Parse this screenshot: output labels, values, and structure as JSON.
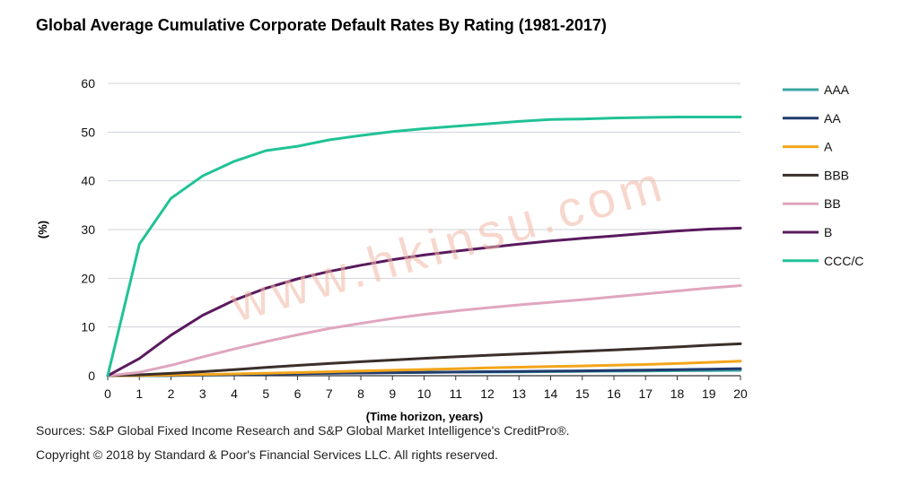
{
  "chart_data": {
    "type": "line",
    "title": "Global Average Cumulative Corporate Default Rates By Rating (1981-2017)",
    "xlabel": "(Time horizon, years)",
    "ylabel": "(%)",
    "xlim": [
      0,
      20
    ],
    "ylim": [
      0,
      60
    ],
    "x": [
      0,
      1,
      2,
      3,
      4,
      5,
      6,
      7,
      8,
      9,
      10,
      11,
      12,
      13,
      14,
      15,
      16,
      17,
      18,
      19,
      20
    ],
    "yticks": [
      0,
      10,
      20,
      30,
      40,
      50,
      60
    ],
    "grid": "horizontal",
    "legend_position": "right",
    "series": [
      {
        "name": "AAA",
        "color": "#3aa6a0",
        "values": [
          0,
          0,
          0.03,
          0.13,
          0.24,
          0.35,
          0.45,
          0.51,
          0.59,
          0.65,
          0.7,
          0.73,
          0.76,
          0.79,
          0.85,
          0.9,
          0.94,
          0.97,
          1.03,
          1.07,
          1.1
        ]
      },
      {
        "name": "AA",
        "color": "#1f3a6e",
        "values": [
          0,
          0.02,
          0.06,
          0.12,
          0.21,
          0.31,
          0.41,
          0.49,
          0.56,
          0.62,
          0.68,
          0.75,
          0.82,
          0.88,
          0.94,
          1.0,
          1.08,
          1.15,
          1.24,
          1.35,
          1.45
        ]
      },
      {
        "name": "A",
        "color": "#f3a51b",
        "values": [
          0,
          0.06,
          0.15,
          0.25,
          0.37,
          0.5,
          0.65,
          0.81,
          0.96,
          1.12,
          1.27,
          1.44,
          1.6,
          1.74,
          1.87,
          2.01,
          2.15,
          2.3,
          2.5,
          2.75,
          3.0
        ]
      },
      {
        "name": "BBB",
        "color": "#3b2f2a",
        "values": [
          0,
          0.18,
          0.48,
          0.82,
          1.25,
          1.69,
          2.12,
          2.5,
          2.88,
          3.23,
          3.57,
          3.89,
          4.18,
          4.48,
          4.74,
          5.0,
          5.3,
          5.6,
          5.9,
          6.25,
          6.55
        ]
      },
      {
        "name": "BB",
        "color": "#e0a6bf",
        "values": [
          0,
          0.7,
          2.13,
          3.84,
          5.48,
          7.0,
          8.4,
          9.68,
          10.75,
          11.74,
          12.59,
          13.31,
          13.95,
          14.54,
          15.08,
          15.6,
          16.2,
          16.8,
          17.4,
          18.0,
          18.5
        ]
      },
      {
        "name": "B",
        "color": "#5a1a5e",
        "values": [
          0,
          3.53,
          8.32,
          12.4,
          15.5,
          17.97,
          19.88,
          21.4,
          22.67,
          23.81,
          24.78,
          25.57,
          26.3,
          27.0,
          27.65,
          28.2,
          28.7,
          29.2,
          29.7,
          30.1,
          30.3
        ]
      },
      {
        "name": "CCC/C",
        "color": "#21c296",
        "values": [
          0,
          27.0,
          36.4,
          41.0,
          44.0,
          46.2,
          47.1,
          48.4,
          49.3,
          50.1,
          50.7,
          51.2,
          51.7,
          52.2,
          52.6,
          52.7,
          52.9,
          53.0,
          53.1,
          53.1,
          53.1
        ]
      }
    ]
  },
  "watermark": "www.hkinsu.com",
  "source_text": "Sources: S&P Global Fixed Income Research and S&P Global Market Intelligence's CreditPro®.",
  "copyright_text": "Copyright © 2018 by Standard & Poor's Financial Services LLC. All rights reserved."
}
